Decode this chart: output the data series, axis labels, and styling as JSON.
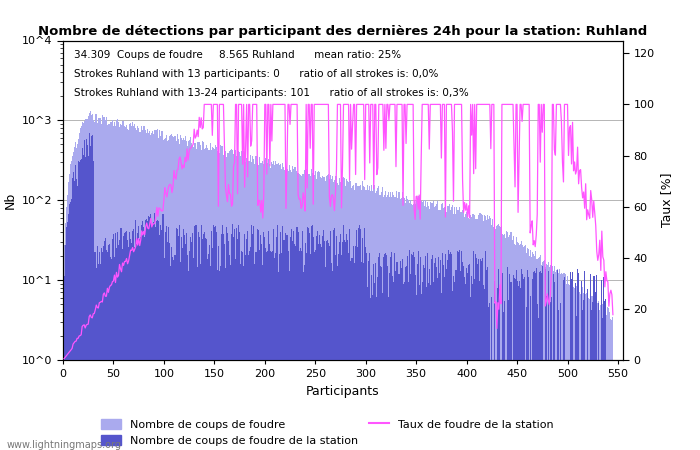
{
  "title": "Nombre de détections par participant des dernières 24h pour la station: Ruhland",
  "annotation_line1": "34.309  Coups de foudre     8.565 Ruhland      mean ratio: 25%",
  "annotation_line2": "Strokes Ruhland with 13 participants: 0      ratio of all strokes is: 0,0%",
  "annotation_line3": "Strokes Ruhland with 13-24 participants: 101      ratio of all strokes is: 0,3%",
  "xlabel": "Participants",
  "ylabel_left": "Nb",
  "ylabel_right": "Taux [%]",
  "xlim": [
    0,
    555
  ],
  "ylim_left": [
    1,
    10000
  ],
  "ylim_right": [
    0,
    125
  ],
  "yticks_right": [
    0,
    20,
    40,
    60,
    80,
    100,
    120
  ],
  "xticks": [
    0,
    50,
    100,
    150,
    200,
    250,
    300,
    350,
    400,
    450,
    500,
    550
  ],
  "color_light_bar": "#aaaaee",
  "color_dark_bar": "#5555cc",
  "color_line": "#ff55ff",
  "watermark": "www.lightningmaps.org",
  "legend_light": "Nombre de coups de foudre",
  "legend_dark": "Nombre de coups de foudre de la station",
  "legend_line": "Taux de foudre de la station",
  "n_participants": 545
}
